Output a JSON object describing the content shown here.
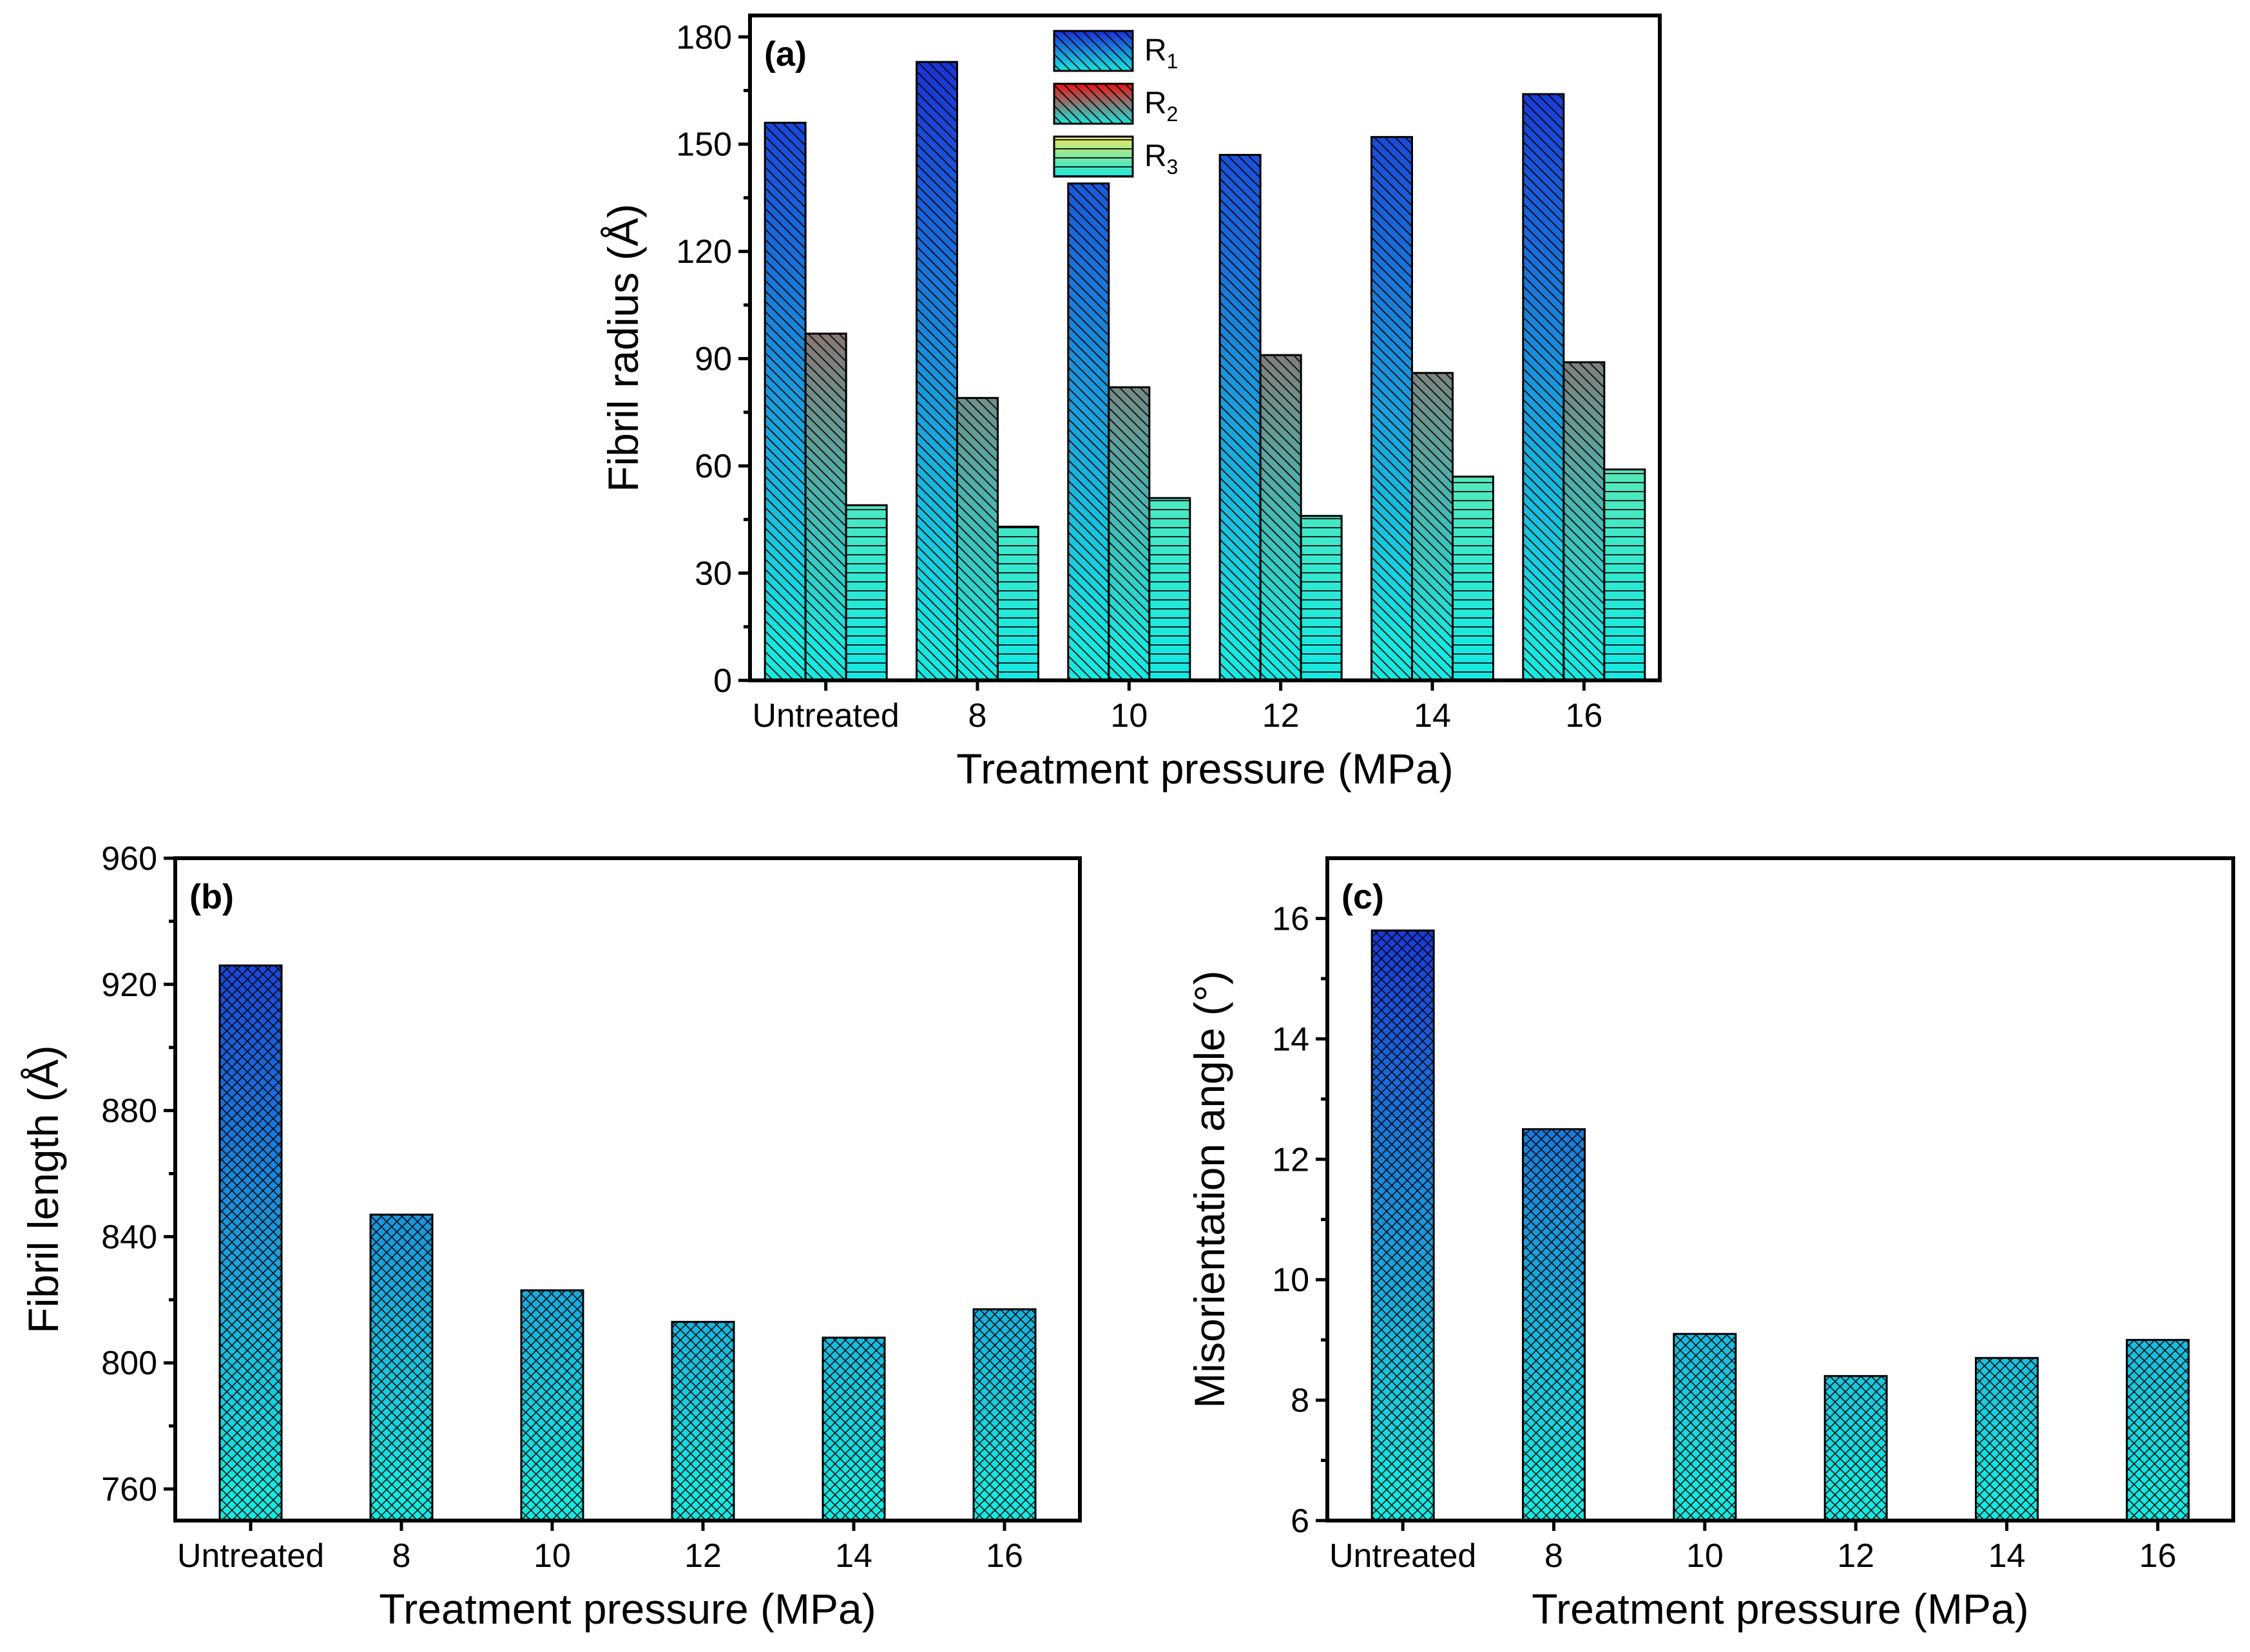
{
  "chart_data": [
    {
      "id": "a",
      "type": "bar",
      "panel_label": "(a)",
      "categories": [
        "Untreated",
        "8",
        "10",
        "12",
        "14",
        "16"
      ],
      "series": [
        {
          "name": "R",
          "subscript": "1",
          "values": [
            156,
            173,
            139,
            147,
            152,
            164
          ],
          "top_color": "#1a2fd6",
          "bottom_color": "#18e8e0",
          "pattern": "diag-down"
        },
        {
          "name": "R",
          "subscript": "2",
          "values": [
            97,
            79,
            82,
            91,
            86,
            89
          ],
          "top_color": "#ee1010",
          "bottom_color": "#18e8e0",
          "pattern": "diag-down"
        },
        {
          "name": "R",
          "subscript": "3",
          "values": [
            49,
            43,
            51,
            46,
            57,
            59
          ],
          "top_color": "#ece860",
          "bottom_color": "#18e8e0",
          "pattern": "horizontal"
        }
      ],
      "xlabel": "Treatment pressure (MPa)",
      "ylabel": "Fibril radius (Å)",
      "ylim": [
        0,
        186
      ],
      "yticks": [
        0,
        30,
        60,
        90,
        120,
        150,
        180
      ],
      "legend_position": "top-center"
    },
    {
      "id": "b",
      "type": "bar",
      "panel_label": "(b)",
      "categories": [
        "Untreated",
        "8",
        "10",
        "12",
        "14",
        "16"
      ],
      "values": [
        926,
        847,
        823,
        813,
        808,
        817
      ],
      "top_color": "#1a2fd6",
      "bottom_color": "#18e8e0",
      "pattern": "crosshatch",
      "xlabel": "Treatment pressure (MPa)",
      "ylabel": "Fibril length (Å)",
      "ylim": [
        750,
        960
      ],
      "yticks": [
        760,
        800,
        840,
        880,
        920,
        960
      ]
    },
    {
      "id": "c",
      "type": "bar",
      "panel_label": "(c)",
      "categories": [
        "Untreated",
        "8",
        "10",
        "12",
        "14",
        "16"
      ],
      "values": [
        15.8,
        12.5,
        9.1,
        8.4,
        8.7,
        9.0
      ],
      "top_color": "#1a2fd6",
      "bottom_color": "#18e8e0",
      "pattern": "crosshatch",
      "xlabel": "Treatment pressure (MPa)",
      "ylabel": "Misorientation angle (°)",
      "ylim": [
        6,
        17
      ],
      "yticks": [
        6,
        8,
        10,
        12,
        14,
        16
      ]
    }
  ]
}
